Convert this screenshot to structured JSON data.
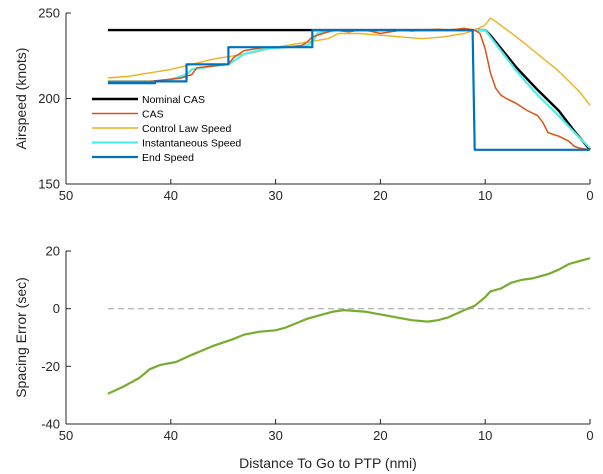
{
  "chart_data": [
    {
      "type": "line",
      "ylabel": "Airspeed (knots)",
      "xlabel": "",
      "xlim": [
        50,
        0
      ],
      "ylim": [
        150,
        250
      ],
      "x_reversed": true,
      "xticks": [
        50,
        40,
        30,
        20,
        10,
        0
      ],
      "yticks": [
        150,
        200,
        250
      ],
      "xtick_labels": [
        "50",
        "40",
        "30",
        "20",
        "10",
        "0"
      ],
      "ytick_labels": [
        "150",
        "200",
        "250"
      ],
      "legend_position": "left",
      "series": [
        {
          "name": "Nominal CAS",
          "color": "#000000",
          "points": [
            [
              46,
              240
            ],
            [
              10,
              240
            ],
            [
              9.5,
              237
            ],
            [
              7,
              218
            ],
            [
              5,
              205
            ],
            [
              3,
              193
            ],
            [
              1.5,
              181
            ],
            [
              0,
              170
            ]
          ]
        },
        {
          "name": "CAS",
          "color": "#D95319",
          "points": [
            [
              46,
              210
            ],
            [
              44,
              210
            ],
            [
              42,
              210
            ],
            [
              40.5,
              211
            ],
            [
              39,
              212
            ],
            [
              38,
              214
            ],
            [
              37.5,
              218
            ],
            [
              36,
              219
            ],
            [
              34.5,
              220
            ],
            [
              34,
              224
            ],
            [
              33,
              228
            ],
            [
              31,
              230
            ],
            [
              29,
              230
            ],
            [
              27.5,
              231
            ],
            [
              27,
              233
            ],
            [
              26.5,
              236
            ],
            [
              25.5,
              238
            ],
            [
              24.5,
              240
            ],
            [
              23,
              239
            ],
            [
              22,
              240
            ],
            [
              21,
              239.5
            ],
            [
              20,
              238
            ],
            [
              19,
              239
            ],
            [
              18,
              240
            ],
            [
              17,
              239.5
            ],
            [
              16,
              240
            ],
            [
              14.5,
              240.5
            ],
            [
              13.5,
              240
            ],
            [
              12,
              241
            ],
            [
              11,
              240
            ],
            [
              10.5,
              238
            ],
            [
              10,
              229
            ],
            [
              9.5,
              215
            ],
            [
              9,
              206
            ],
            [
              8.5,
              202
            ],
            [
              8,
              200
            ],
            [
              7,
              197
            ],
            [
              6,
              193
            ],
            [
              5,
              190
            ],
            [
              4.5,
              186
            ],
            [
              4,
              180
            ],
            [
              3,
              178
            ],
            [
              2,
              175
            ],
            [
              1.5,
              172
            ],
            [
              1,
              171
            ],
            [
              0,
              170
            ]
          ]
        },
        {
          "name": "Control Law Speed",
          "color": "#EDB120",
          "points": [
            [
              46,
              212
            ],
            [
              44,
              213
            ],
            [
              42,
              215
            ],
            [
              40,
              217
            ],
            [
              38,
              220
            ],
            [
              36,
              223
            ],
            [
              34,
              225
            ],
            [
              32,
              227
            ],
            [
              30,
              230
            ],
            [
              28,
              232
            ],
            [
              26,
              234
            ],
            [
              25,
              235
            ],
            [
              24,
              238
            ],
            [
              22,
              238
            ],
            [
              20,
              237
            ],
            [
              18,
              236
            ],
            [
              16,
              235
            ],
            [
              14,
              236
            ],
            [
              12,
              238
            ],
            [
              11,
              240
            ],
            [
              10,
              243
            ],
            [
              9.5,
              247
            ],
            [
              9,
              245
            ],
            [
              7,
              236
            ],
            [
              5,
              226
            ],
            [
              3,
              216
            ],
            [
              1,
              204
            ],
            [
              0,
              196
            ]
          ]
        },
        {
          "name": "Instantaneous Speed",
          "color": "#4DEEEA",
          "points": [
            [
              46,
              210
            ],
            [
              42,
              210
            ],
            [
              41.5,
              210
            ],
            [
              40,
              211
            ],
            [
              39,
              213
            ],
            [
              38.5,
              214
            ],
            [
              38,
              217
            ],
            [
              36,
              219
            ],
            [
              34.5,
              220
            ],
            [
              34,
              222
            ],
            [
              33,
              226
            ],
            [
              31,
              229
            ],
            [
              29,
              230
            ],
            [
              27,
              231
            ],
            [
              26.5,
              233
            ],
            [
              26,
              238
            ],
            [
              24,
              240
            ],
            [
              10,
              240
            ],
            [
              9.5,
              236
            ],
            [
              7,
              216
            ],
            [
              5,
              202
            ],
            [
              3,
              190
            ],
            [
              1,
              177
            ],
            [
              0,
              171
            ]
          ]
        },
        {
          "name": "End Speed",
          "color": "#0072BD",
          "points": [
            [
              46,
              209
            ],
            [
              41.5,
              209
            ],
            [
              41.5,
              210
            ],
            [
              38.5,
              210
            ],
            [
              38.5,
              220
            ],
            [
              34.5,
              220
            ],
            [
              34.5,
              230
            ],
            [
              26.5,
              230
            ],
            [
              26.5,
              240
            ],
            [
              11.2,
              240
            ],
            [
              11,
              170
            ],
            [
              0,
              170
            ]
          ]
        }
      ]
    },
    {
      "type": "line",
      "ylabel": "Spacing Error (sec)",
      "xlabel": "Distance To Go to PTP (nmi)",
      "xlim": [
        50,
        0
      ],
      "ylim": [
        -40,
        20
      ],
      "x_reversed": true,
      "xticks": [
        50,
        40,
        30,
        20,
        10,
        0
      ],
      "yticks": [
        -40,
        -20,
        0,
        20
      ],
      "xtick_labels": [
        "50",
        "40",
        "30",
        "20",
        "10",
        "0"
      ],
      "ytick_labels": [
        "-40",
        "-20",
        "0",
        "20"
      ],
      "reference_line": {
        "y": 0,
        "style": "dashed",
        "color": "#AAAAAA"
      },
      "series": [
        {
          "name": "",
          "color": "#77AC30",
          "points": [
            [
              46,
              -29.5
            ],
            [
              44.5,
              -27
            ],
            [
              43,
              -24
            ],
            [
              42,
              -21
            ],
            [
              41,
              -19.5
            ],
            [
              39.5,
              -18.5
            ],
            [
              38,
              -16
            ],
            [
              36,
              -13
            ],
            [
              34,
              -10.5
            ],
            [
              33,
              -9
            ],
            [
              31.5,
              -8
            ],
            [
              30,
              -7.5
            ],
            [
              29,
              -6.5
            ],
            [
              28,
              -5
            ],
            [
              27,
              -3.5
            ],
            [
              25.5,
              -2
            ],
            [
              24.5,
              -1
            ],
            [
              23.5,
              -0.5
            ],
            [
              21.5,
              -1
            ],
            [
              20,
              -2
            ],
            [
              18.5,
              -3
            ],
            [
              17,
              -4
            ],
            [
              15.5,
              -4.5
            ],
            [
              14.5,
              -4
            ],
            [
              13.5,
              -3
            ],
            [
              12,
              -0.5
            ],
            [
              11,
              1
            ],
            [
              10,
              4
            ],
            [
              9.5,
              6
            ],
            [
              8.5,
              7
            ],
            [
              7.5,
              9
            ],
            [
              6.5,
              10
            ],
            [
              5.5,
              10.5
            ],
            [
              4,
              12
            ],
            [
              3,
              13.5
            ],
            [
              2,
              15.5
            ],
            [
              1,
              16.5
            ],
            [
              0,
              17.5
            ]
          ]
        }
      ]
    }
  ]
}
